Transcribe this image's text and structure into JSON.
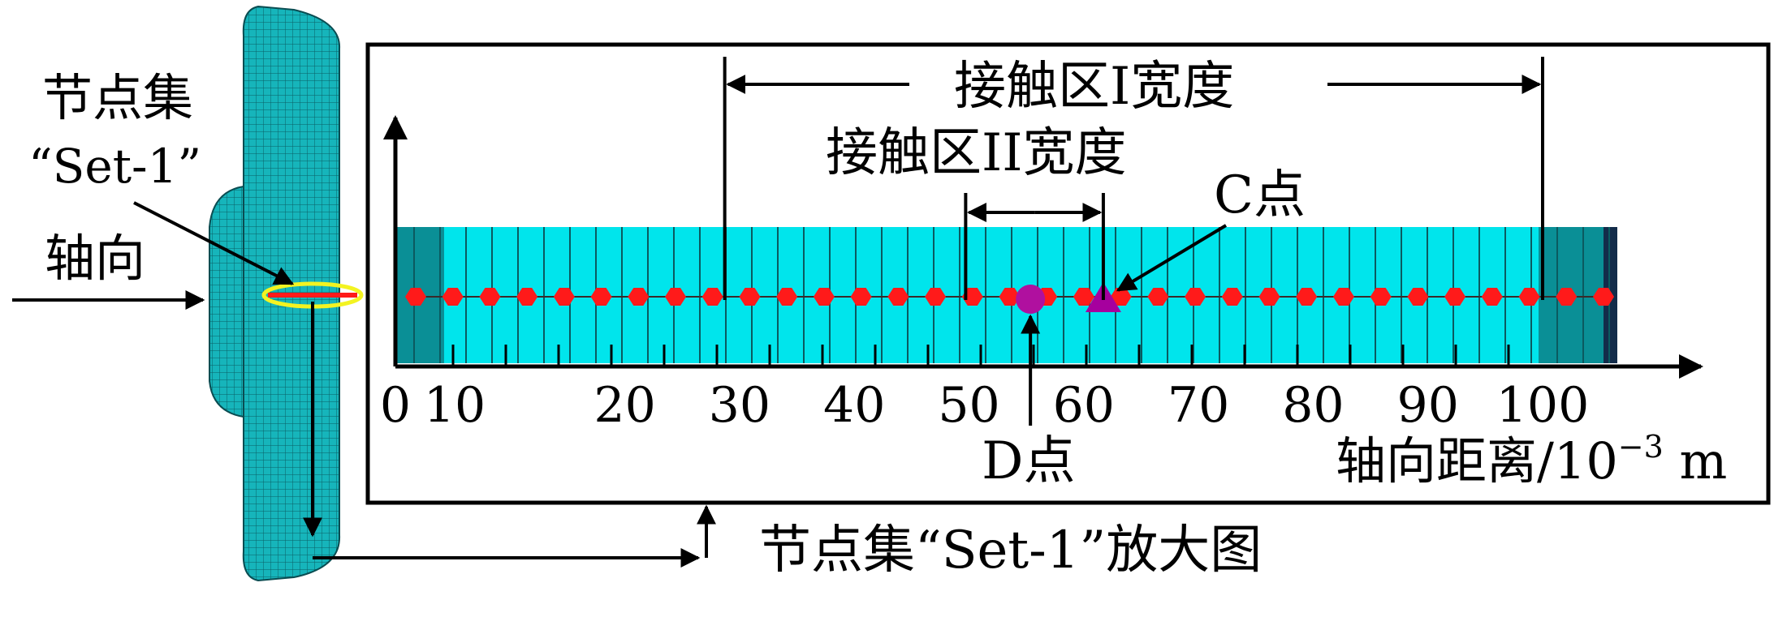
{
  "labels": {
    "node_set_line1": "节点集",
    "node_set_line2": "“Set-1”",
    "axial": "轴向",
    "contact_I_width": "接触区I宽度",
    "contact_II_width": "接触区II宽度",
    "point_c": "C点",
    "point_d": "D点",
    "axis_title_main": "轴向距离/10",
    "axis_title_exp": "−3",
    "axis_title_unit": " m",
    "caption": "节点集“Set-1”放大图"
  },
  "axis": {
    "ticks": [
      "0",
      "10",
      "20",
      "30",
      "40",
      "50",
      "60",
      "70",
      "80",
      "90",
      "100"
    ]
  },
  "nodes": {
    "count": 33,
    "point_d_position": 55,
    "point_c_position": 61,
    "contact_I_range": [
      28,
      100
    ],
    "contact_II_range": [
      49,
      61
    ]
  },
  "colors": {
    "strip": "#00e5ec",
    "strip_dark": "#0a7f87",
    "mesh": "#1aa7ad",
    "node": "#ff1a1a",
    "point_d": "#b0109f",
    "point_c": "#a6009e",
    "highlight": "#f3f321"
  }
}
